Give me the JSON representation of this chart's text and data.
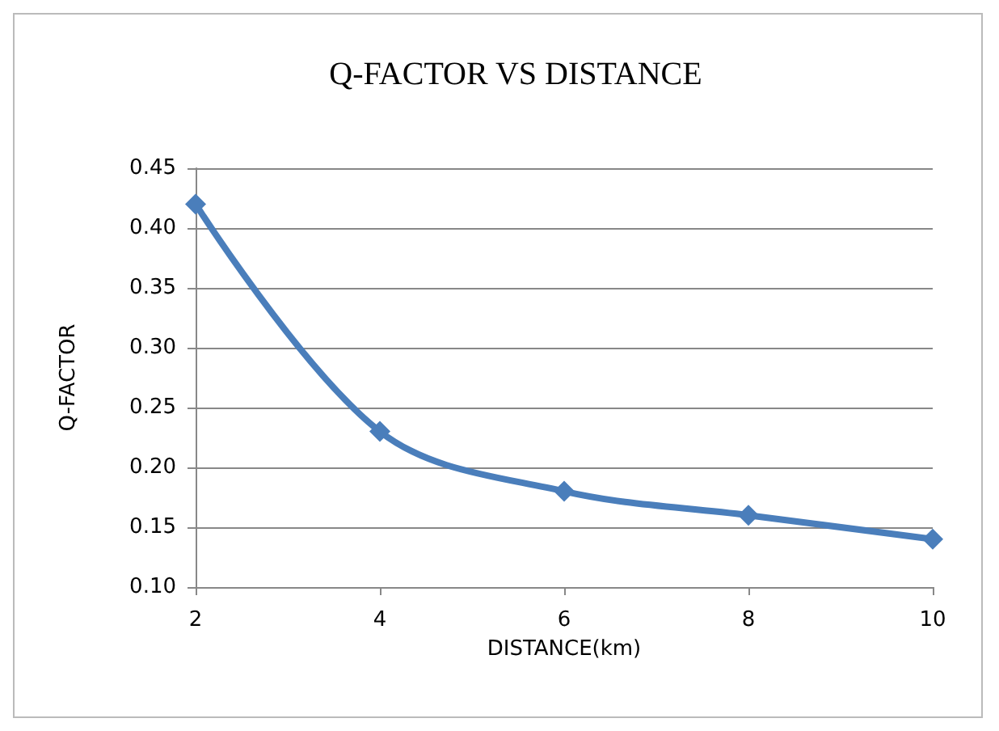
{
  "chart_data": {
    "type": "line",
    "title": "Q-FACTOR VS DISTANCE",
    "xlabel": "DISTANCE(km)",
    "ylabel": "Q-FACTOR",
    "x": [
      2,
      4,
      6,
      8,
      10
    ],
    "series": [
      {
        "color": "#4a7ebb",
        "values": [
          0.42,
          0.23,
          0.18,
          0.16,
          0.14
        ]
      }
    ],
    "xlim": [
      2,
      10
    ],
    "xticks": [
      2,
      4,
      6,
      8,
      10
    ],
    "ylim": [
      0.1,
      0.45
    ],
    "yticks": [
      {
        "value": 0.1,
        "label": "0.10"
      },
      {
        "value": 0.15,
        "label": "0.15"
      },
      {
        "value": 0.2,
        "label": "0.20"
      },
      {
        "value": 0.25,
        "label": "0.25"
      },
      {
        "value": 0.3,
        "label": "0.30"
      },
      {
        "value": 0.35,
        "label": "0.35"
      },
      {
        "value": 0.4,
        "label": "0.40"
      },
      {
        "value": 0.45,
        "label": "0.45"
      }
    ],
    "grid": "y",
    "marker": "diamond",
    "line_style": "solid"
  }
}
